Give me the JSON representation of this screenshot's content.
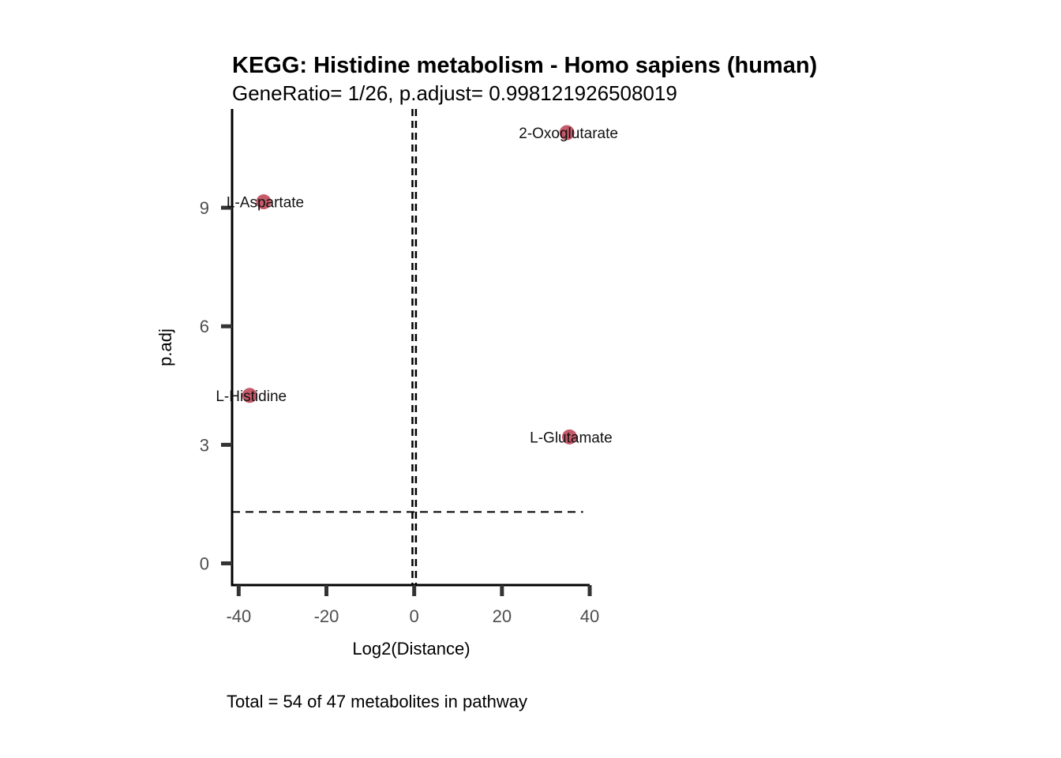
{
  "chart_data": {
    "type": "scatter",
    "title": "KEGG: Histidine metabolism - Homo sapiens (human)",
    "subtitle": "GeneRatio= 1/26, p.adjust= 0.998121926508019",
    "xlabel": "Log2(Distance)",
    "ylabel": "p.adj",
    "caption": "Total = 54 of 47 metabolites in pathway",
    "xlim": [
      -41.5,
      40
    ],
    "ylim": [
      -0.55,
      11.5
    ],
    "xticks": [
      -40,
      -20,
      0,
      20,
      40
    ],
    "xtick_labels": [
      "-40",
      "-20",
      "0",
      "20",
      "40"
    ],
    "yticks": [
      0,
      3,
      6,
      9
    ],
    "ytick_labels": [
      "0",
      "3",
      "6",
      "9"
    ],
    "vlines": [
      -0.4,
      0.4
    ],
    "hline": 1.3,
    "hline_x_range": [
      -41.5,
      38.5
    ],
    "grid": false,
    "point_color": "#c55a6a",
    "points": [
      {
        "label": "2-Oxoglutarate",
        "x": 34.8,
        "y": 10.9
      },
      {
        "label": "L-Aspartate",
        "x": -34.3,
        "y": 9.15
      },
      {
        "label": "L-Histidine",
        "x": -37.5,
        "y": 4.25
      },
      {
        "label": "L-Glutamate",
        "x": 35.4,
        "y": 3.2
      }
    ]
  }
}
